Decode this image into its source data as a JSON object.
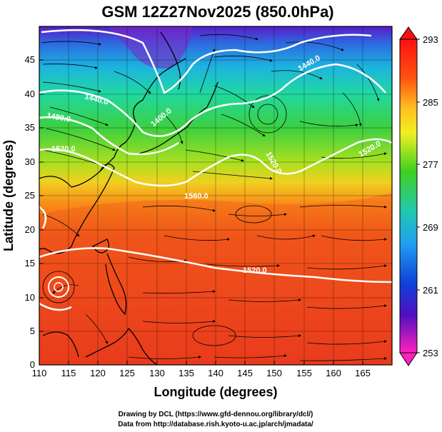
{
  "title": "GSM 12Z27Nov2025 (850.0hPa)",
  "xlabel": "Longitude (degrees)",
  "ylabel": "Latitude  (degrees)",
  "x_ticks": [
    "110",
    "115",
    "120",
    "125",
    "130",
    "135",
    "140",
    "145",
    "150",
    "155",
    "160",
    "165"
  ],
  "y_ticks": [
    "0",
    "5",
    "10",
    "15",
    "20",
    "25",
    "30",
    "35",
    "40",
    "45"
  ],
  "colorbar_ticks": [
    "293",
    "285",
    "277",
    "269",
    "261",
    "253"
  ],
  "credits": {
    "line1": "Drawing by DCL (https://www.gfd-dennou.org/library/dcl/)",
    "line2": "Data from http://database.rish.kyoto-u.ac.jp/arch/jmadata/"
  },
  "contour_labels": [
    "1440.0",
    "1440.0",
    "1480.0",
    "1400.0",
    "1520.0",
    "1520.0",
    "1520.0",
    "1560.0",
    "1520.0"
  ],
  "colors": {
    "field_warm": "#e8401c",
    "field_mid": "#4cc820",
    "field_cold": "#6a14c8",
    "contour": "#ffffff",
    "streamline": "#000000"
  },
  "map": {
    "lon_range": [
      110,
      170
    ],
    "lat_range": [
      0,
      50
    ],
    "field": "temperature",
    "field_units": "K",
    "contour_field": "geopotential height",
    "vectors": "wind streamlines"
  },
  "colorbar": {
    "min": 253,
    "max": 293
  }
}
